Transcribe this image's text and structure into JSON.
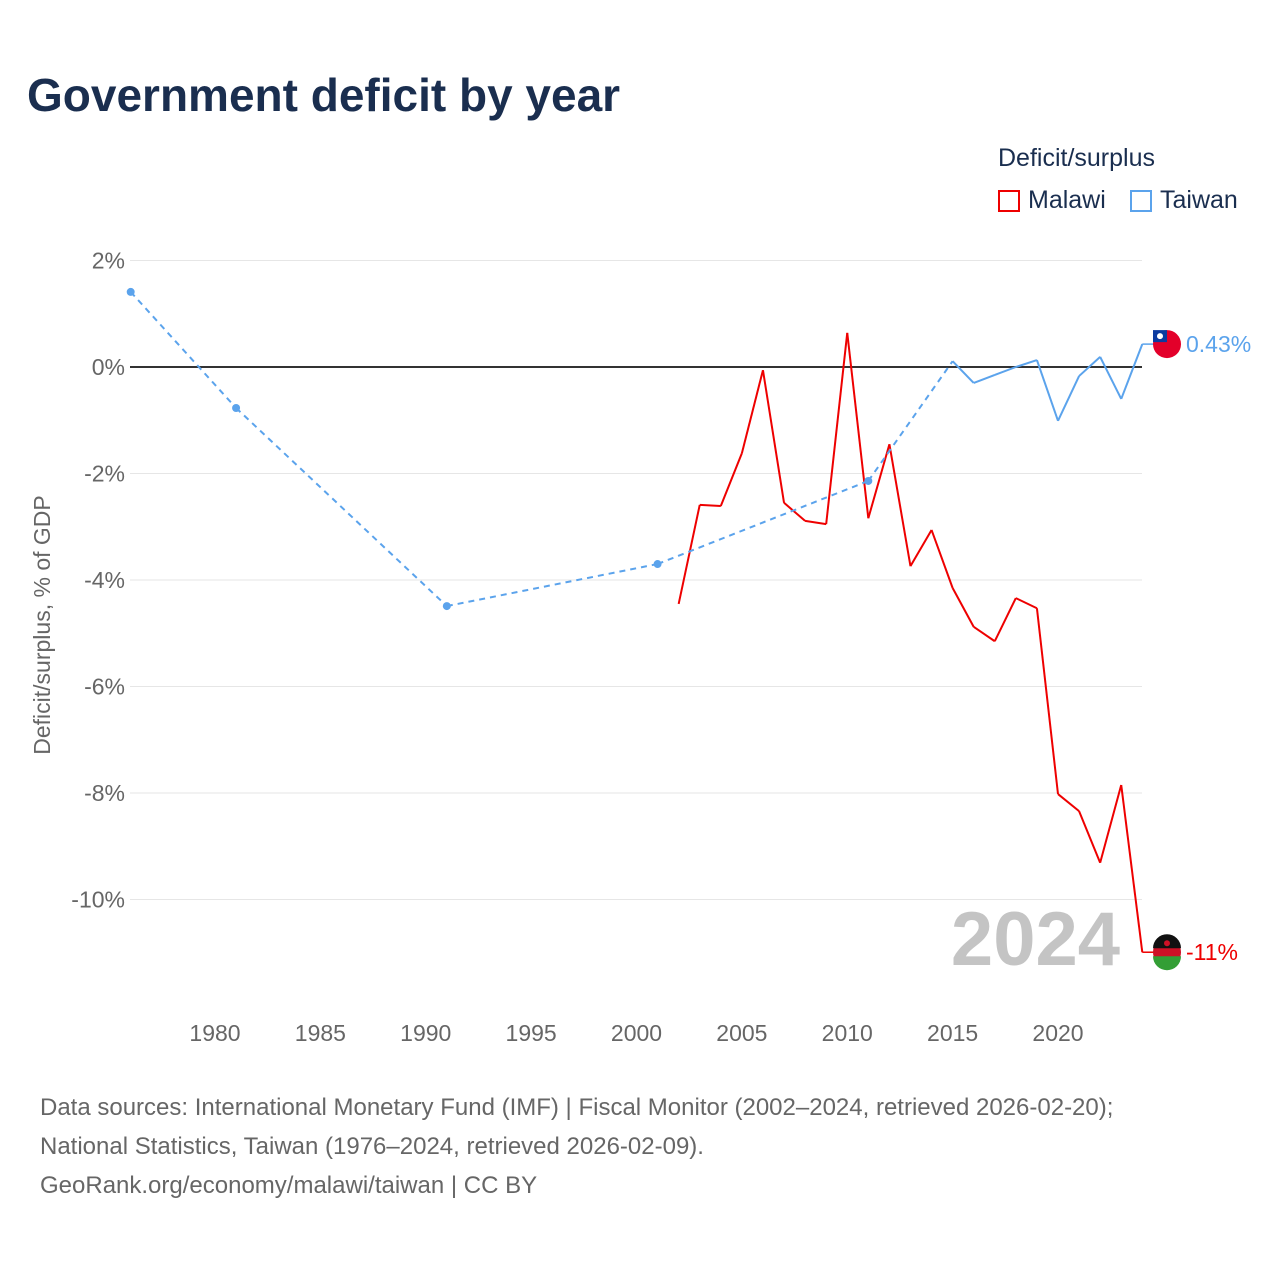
{
  "chart_data": {
    "type": "line",
    "title": "Government deficit by year",
    "ylabel": "Deficit/surplus, % of GDP",
    "xlabel": "",
    "xlim": [
      1976,
      2024
    ],
    "ylim": [
      -11.5,
      2.2
    ],
    "xticks": [
      1980,
      1985,
      1990,
      1995,
      2000,
      2005,
      2010,
      2015,
      2020
    ],
    "xtick_labels": [
      "1980",
      "1985",
      "1990",
      "1995",
      "2000",
      "2005",
      "2010",
      "2015",
      "2020"
    ],
    "yticks": [
      2,
      0,
      -2,
      -4,
      -6,
      -8,
      -10
    ],
    "ytick_labels": [
      "2%",
      "0%",
      "-2%",
      "-4%",
      "-6%",
      "-8%",
      "-10%"
    ],
    "legend_title": "Deficit/surplus",
    "legend_position": "top-right",
    "year_watermark": "2024",
    "series": [
      {
        "name": "Malawi",
        "color": "#ee0000",
        "end_label": "-11%",
        "x": [
          2002,
          2003,
          2004,
          2005,
          2006,
          2007,
          2008,
          2009,
          2010,
          2011,
          2012,
          2013,
          2014,
          2015,
          2016,
          2017,
          2018,
          2019,
          2020,
          2021,
          2022,
          2023,
          2024
        ],
        "y": [
          -4.45,
          -2.59,
          -2.61,
          -1.62,
          -0.06,
          -2.55,
          -2.89,
          -2.95,
          0.64,
          -2.84,
          -1.45,
          -3.74,
          -3.06,
          -4.15,
          -4.88,
          -5.15,
          -4.34,
          -4.53,
          -8.02,
          -8.34,
          -9.31,
          -7.85,
          -10.99
        ]
      },
      {
        "name": "Taiwan",
        "color": "#5ba3ec",
        "end_label": "0.43%",
        "x": [
          1976,
          1981,
          1991,
          2001,
          2011,
          2015,
          2016,
          2017,
          2018,
          2019,
          2020,
          2021,
          2022,
          2023,
          2024
        ],
        "y": [
          1.41,
          -0.77,
          -4.49,
          -3.7,
          -2.14,
          0.11,
          -0.3,
          -0.15,
          0.0,
          0.13,
          -1.01,
          -0.17,
          0.19,
          -0.6,
          0.43
        ]
      }
    ]
  },
  "source_lines": [
    "Data sources: International Monetary Fund (IMF) | Fiscal Monitor (2002–2024, retrieved 2026-02-20);",
    "National Statistics, Taiwan (1976–2024, retrieved 2026-02-09).",
    "GeoRank.org/economy/malawi/taiwan | CC BY"
  ]
}
